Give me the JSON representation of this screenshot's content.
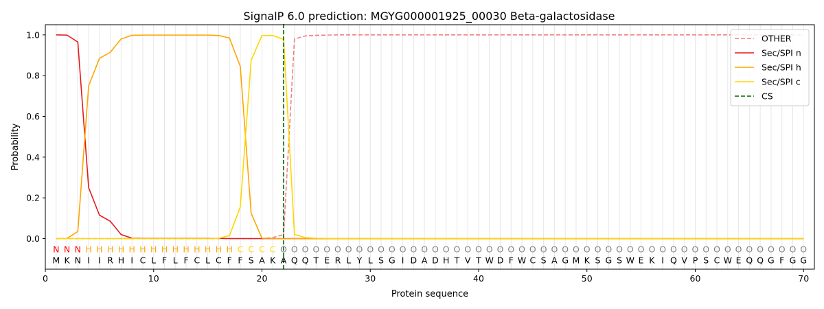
{
  "chart_data": {
    "type": "line",
    "title": "SignalP 6.0 prediction: MGYG000001925_00030 Beta-galactosidase",
    "xlabel": "Protein sequence",
    "ylabel": "Probability",
    "xlim": [
      0,
      71
    ],
    "ylim": [
      -0.15,
      1.05
    ],
    "x_ticks": [
      0,
      10,
      20,
      30,
      40,
      50,
      60,
      70
    ],
    "y_ticks": [
      0.0,
      0.2,
      0.4,
      0.6,
      0.8,
      1.0
    ],
    "grid": "vertical lines at each residue",
    "legend_position": "top-right",
    "sequence": "MKNIIRHICLFLFCLCFFSAKAQQTERLYLSGIDADHTVTWDFWCSAGMKSGSWEKIQVPSCWEQQGFGG",
    "region_labels": "NNNHHHHHHHHHHHHHHCCCCOOOOOOOOOOOOOOOOOOOOOOOOOOOOOOOOOOOOOOOOOOOOOOOOO",
    "region_colors": {
      "N": "#ff0000",
      "H": "#ffa500",
      "C": "#ffd700",
      "O": "#808080"
    },
    "x": [
      1,
      2,
      3,
      4,
      5,
      6,
      7,
      8,
      9,
      10,
      11,
      12,
      13,
      14,
      15,
      16,
      17,
      18,
      19,
      20,
      21,
      22,
      23,
      24,
      25,
      26,
      27,
      28,
      29,
      30,
      31,
      32,
      33,
      34,
      35,
      36,
      37,
      38,
      39,
      40,
      41,
      42,
      43,
      44,
      45,
      46,
      47,
      48,
      49,
      50,
      51,
      52,
      53,
      54,
      55,
      56,
      57,
      58,
      59,
      60,
      61,
      62,
      63,
      64,
      65,
      66,
      67,
      68,
      69,
      70
    ],
    "series": [
      {
        "name": "OTHER",
        "color": "#f08080",
        "dash": "dashed",
        "values": [
          0,
          0,
          0,
          0,
          0,
          0,
          0,
          0,
          0,
          0,
          0,
          0,
          0,
          0,
          0,
          0,
          0,
          0,
          0,
          0,
          0.005,
          0.02,
          0.98,
          0.995,
          0.998,
          0.999,
          1,
          1,
          1,
          1,
          1,
          1,
          1,
          1,
          1,
          1,
          1,
          1,
          1,
          1,
          1,
          1,
          1,
          1,
          1,
          1,
          1,
          1,
          1,
          1,
          1,
          1,
          1,
          1,
          1,
          1,
          1,
          1,
          1,
          1,
          1,
          1,
          1,
          1,
          1,
          1,
          1,
          1,
          1,
          1
        ]
      },
      {
        "name": "Sec/SPI n",
        "color": "#e31a1c",
        "dash": "solid",
        "values": [
          1,
          0.999,
          0.965,
          0.25,
          0.115,
          0.085,
          0.02,
          0.002,
          0.001,
          0.001,
          0.001,
          0.001,
          0.001,
          0.001,
          0.001,
          0.001,
          0,
          0,
          0,
          0,
          0,
          0,
          0,
          0,
          0,
          0,
          0,
          0,
          0,
          0,
          0,
          0,
          0,
          0,
          0,
          0,
          0,
          0,
          0,
          0,
          0,
          0,
          0,
          0,
          0,
          0,
          0,
          0,
          0,
          0,
          0,
          0,
          0,
          0,
          0,
          0,
          0,
          0,
          0,
          0,
          0,
          0,
          0,
          0,
          0,
          0,
          0,
          0,
          0,
          0
        ]
      },
      {
        "name": "Sec/SPI h",
        "color": "#ffa500",
        "dash": "solid",
        "values": [
          0,
          0.001,
          0.035,
          0.75,
          0.885,
          0.915,
          0.98,
          0.998,
          0.999,
          0.999,
          0.999,
          0.999,
          0.999,
          0.999,
          0.999,
          0.997,
          0.985,
          0.845,
          0.125,
          0.002,
          0.001,
          0,
          0,
          0,
          0,
          0,
          0,
          0,
          0,
          0,
          0,
          0,
          0,
          0,
          0,
          0,
          0,
          0,
          0,
          0,
          0,
          0,
          0,
          0,
          0,
          0,
          0,
          0,
          0,
          0,
          0,
          0,
          0,
          0,
          0,
          0,
          0,
          0,
          0,
          0,
          0,
          0,
          0,
          0,
          0,
          0,
          0,
          0,
          0,
          0
        ]
      },
      {
        "name": "Sec/SPI c",
        "color": "#ffd700",
        "dash": "solid",
        "values": [
          0,
          0,
          0,
          0,
          0,
          0,
          0,
          0,
          0,
          0,
          0,
          0,
          0,
          0,
          0,
          0.001,
          0.015,
          0.155,
          0.875,
          0.997,
          0.997,
          0.978,
          0.02,
          0.005,
          0.002,
          0.001,
          0,
          0,
          0,
          0,
          0,
          0,
          0,
          0,
          0,
          0,
          0,
          0,
          0,
          0,
          0,
          0,
          0,
          0,
          0,
          0,
          0,
          0,
          0,
          0,
          0,
          0,
          0,
          0,
          0,
          0,
          0,
          0,
          0,
          0,
          0,
          0,
          0,
          0,
          0,
          0,
          0,
          0,
          0,
          0
        ]
      }
    ],
    "cleavage_site": {
      "name": "CS",
      "x": 22,
      "color": "#006400",
      "dash": "dashed"
    }
  }
}
